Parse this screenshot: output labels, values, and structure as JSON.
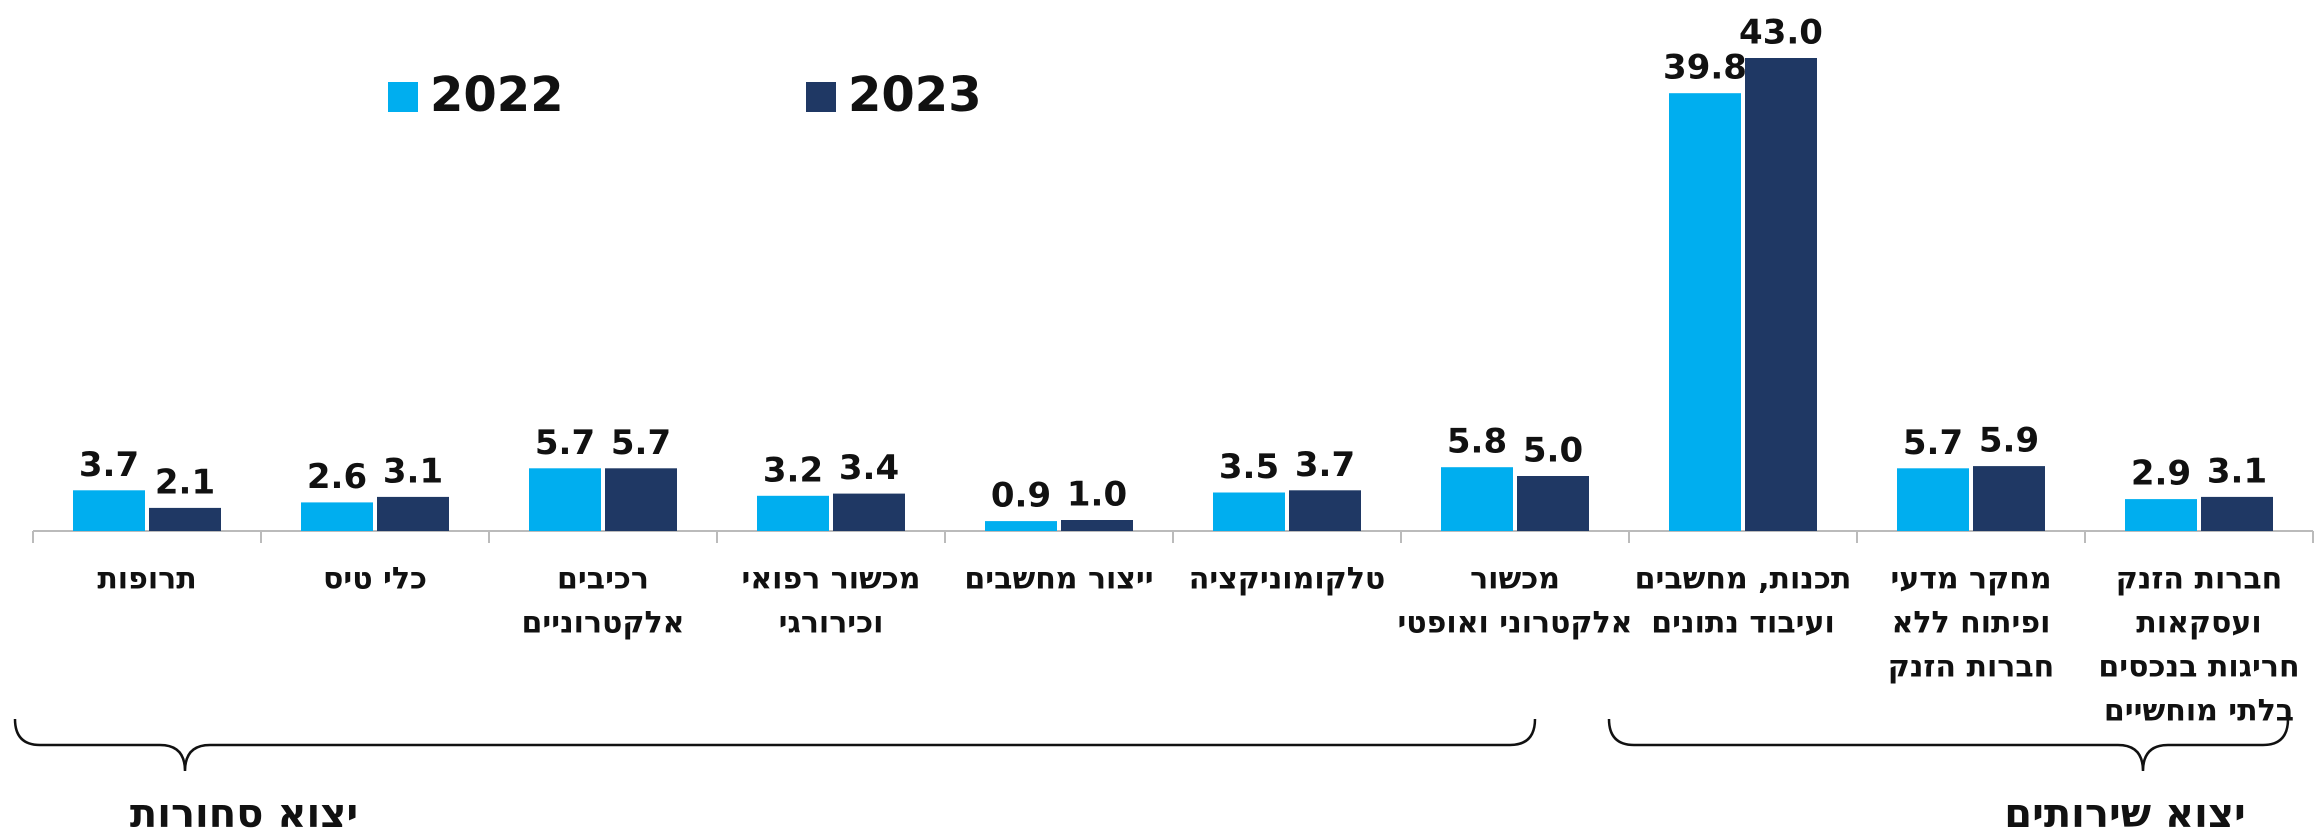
{
  "chart_data": {
    "type": "bar",
    "categories": [
      [
        "תרופות"
      ],
      [
        "כלי טיס"
      ],
      [
        "רכיבים",
        "אלקטרוניים"
      ],
      [
        "מכשור רפואי",
        "וכירורגי"
      ],
      [
        "ייצור מחשבים"
      ],
      [
        "טלקומוניקציה"
      ],
      [
        "מכשור",
        "אלקטרוני ואופטי"
      ],
      [
        "תכנות, מחשבים",
        "ועיבוד נתונים"
      ],
      [
        "מחקר מדעי",
        "ופיתוח ללא",
        "חברות הזנק"
      ],
      [
        "חברות הזנק",
        "ועסקאות",
        "חריגות בנכסים",
        "בלתי מוחשיים"
      ]
    ],
    "series": [
      {
        "name": "2022",
        "color": "#00aeef",
        "values": [
          3.7,
          2.6,
          5.7,
          3.2,
          0.9,
          3.5,
          5.8,
          39.8,
          5.7,
          2.9
        ],
        "value_labels": [
          "3.7",
          "2.6",
          "5.7",
          "3.2",
          "0.9",
          "3.5",
          "5.8",
          "39.8",
          "5.7",
          "2.9"
        ]
      },
      {
        "name": "2023",
        "color": "#1f3864",
        "values": [
          2.1,
          3.1,
          5.7,
          3.4,
          1.0,
          3.7,
          5.0,
          43.0,
          5.9,
          3.1
        ],
        "value_labels": [
          "2.1",
          "3.1",
          "5.7",
          "3.4",
          "1.0",
          "3.7",
          "5.0",
          "43.0",
          "5.9",
          "3.1"
        ]
      }
    ],
    "groups": [
      "יצוא סחורות",
      "יצוא שירותים"
    ],
    "legend": "top-left"
  }
}
